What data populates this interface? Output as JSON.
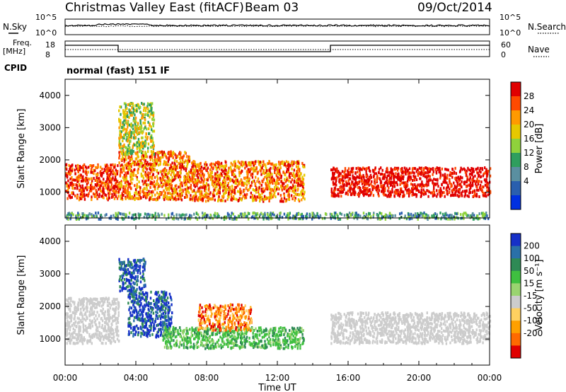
{
  "header": {
    "title": "Christmas Valley East (fitACF)",
    "beam": "Beam 03",
    "date": "09/Oct/2014"
  },
  "noise_panel": {
    "left_label": "N.Sky",
    "right_label": "N.Search",
    "left_ticks": [
      "10^5",
      "10^0"
    ],
    "right_ticks": [
      "10^5",
      "10^0"
    ]
  },
  "freq_panel": {
    "left_label_1": "Freq.",
    "left_label_2": "[MHz]",
    "right_label": "Nave",
    "left_ticks": [
      "18",
      "8"
    ],
    "right_ticks": [
      "60",
      "0"
    ]
  },
  "cpid": {
    "label": "CPID",
    "value": "normal (fast) 151 IF"
  },
  "colorbars": {
    "power": {
      "label": "Power [dB]",
      "ticks": [
        "28",
        "24",
        "20",
        "16",
        "12",
        "8",
        "4"
      ],
      "colors": [
        "#e00000",
        "#ff4a00",
        "#ff9a00",
        "#e6c800",
        "#8fd23c",
        "#2f9e5e",
        "#5a8fa0",
        "#2a5fae",
        "#0030e0"
      ]
    },
    "velocity": {
      "label": "Velocity [m s⁻¹]",
      "ticks": [
        "200",
        "100",
        "50",
        "15",
        "-15",
        "-50",
        "-100",
        "-200"
      ],
      "colors": [
        "#1630c8",
        "#2a70a8",
        "#2e8a55",
        "#3fc040",
        "#9ad470",
        "#cccccc",
        "#ffd060",
        "#ffa000",
        "#ff6a00",
        "#e00000"
      ]
    }
  },
  "chart_data": [
    {
      "type": "heatmap",
      "name": "Power",
      "ylabel": "Slant Range [km]",
      "yticks": [
        1000,
        2000,
        3000,
        4000
      ],
      "ylim": [
        200,
        4500
      ],
      "xlim": [
        0,
        24
      ],
      "regions": [
        {
          "t0": 0.0,
          "t1": 3.0,
          "r0": 800,
          "r1": 1900,
          "level": 7
        },
        {
          "t0": 3.0,
          "t1": 7.0,
          "r0": 800,
          "r1": 2300,
          "level": 6
        },
        {
          "t0": 7.0,
          "t1": 13.5,
          "r0": 750,
          "r1": 2000,
          "level": 6
        },
        {
          "t0": 15.0,
          "t1": 24.0,
          "r0": 900,
          "r1": 1800,
          "level": 8
        },
        {
          "t0": 3.0,
          "t1": 5.0,
          "r0": 2200,
          "r1": 3800,
          "level": 4
        },
        {
          "t0": 0.0,
          "t1": 24.0,
          "r0": 200,
          "r1": 400,
          "level": 2
        }
      ]
    },
    {
      "type": "heatmap",
      "name": "Velocity",
      "ylabel": "Slant Range [km]",
      "yticks": [
        1000,
        2000,
        3000,
        4000
      ],
      "ylim": [
        200,
        4500
      ],
      "xlim": [
        0,
        24
      ],
      "xlabel": "Time UT",
      "xtick_labels": [
        "00:00",
        "04:00",
        "08:00",
        "12:00",
        "16:00",
        "20:00",
        "00:00"
      ],
      "regions": [
        {
          "t0": 0.0,
          "t1": 3.0,
          "r0": 900,
          "r1": 2300,
          "class": "ground"
        },
        {
          "t0": 3.5,
          "t1": 6.0,
          "r0": 1100,
          "r1": 2500,
          "class": "toward_fast"
        },
        {
          "t0": 3.0,
          "t1": 4.5,
          "r0": 2500,
          "r1": 3500,
          "class": "toward_fast"
        },
        {
          "t0": 5.5,
          "t1": 13.5,
          "r0": 750,
          "r1": 1400,
          "class": "toward_slow"
        },
        {
          "t0": 7.5,
          "t1": 10.5,
          "r0": 1300,
          "r1": 2100,
          "class": "away"
        },
        {
          "t0": 15.0,
          "t1": 24.0,
          "r0": 900,
          "r1": 1850,
          "class": "ground"
        }
      ]
    }
  ]
}
